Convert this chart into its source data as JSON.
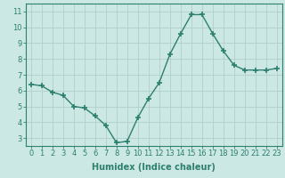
{
  "x": [
    0,
    1,
    2,
    3,
    4,
    5,
    6,
    7,
    8,
    9,
    10,
    11,
    12,
    13,
    14,
    15,
    16,
    17,
    18,
    19,
    20,
    21,
    22,
    23
  ],
  "y": [
    6.4,
    6.3,
    5.9,
    5.7,
    5.0,
    4.9,
    4.4,
    3.8,
    2.7,
    2.8,
    4.3,
    5.5,
    6.5,
    8.3,
    9.6,
    10.8,
    10.8,
    9.6,
    8.5,
    7.6,
    7.3,
    7.3,
    7.3,
    7.4
  ],
  "line_color": "#2d7f6e",
  "bg_color": "#cce8e4",
  "grid_color": "#b0cfcc",
  "xlabel": "Humidex (Indice chaleur)",
  "xlim_left": -0.5,
  "xlim_right": 23.5,
  "ylim_bottom": 2.5,
  "ylim_top": 11.5,
  "yticks": [
    3,
    4,
    5,
    6,
    7,
    8,
    9,
    10,
    11
  ],
  "xticks": [
    0,
    1,
    2,
    3,
    4,
    5,
    6,
    7,
    8,
    9,
    10,
    11,
    12,
    13,
    14,
    15,
    16,
    17,
    18,
    19,
    20,
    21,
    22,
    23
  ],
  "xtick_labels": [
    "0",
    "1",
    "2",
    "3",
    "4",
    "5",
    "6",
    "7",
    "8",
    "9",
    "10",
    "11",
    "12",
    "13",
    "14",
    "15",
    "16",
    "17",
    "18",
    "19",
    "20",
    "21",
    "22",
    "23"
  ],
  "marker": "+",
  "markersize": 4,
  "linewidth": 1.0,
  "xlabel_fontsize": 7,
  "tick_fontsize": 6
}
